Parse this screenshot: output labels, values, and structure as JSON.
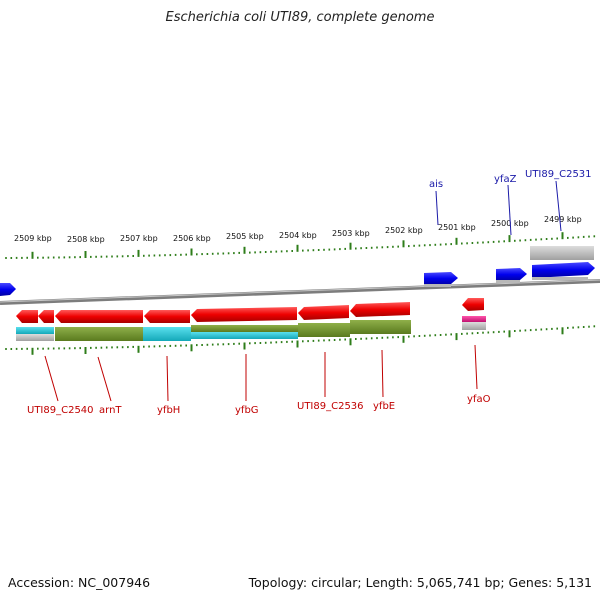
{
  "title": "Escherichia coli UTI89, complete genome",
  "footer": {
    "accession": "Accession: NC_007946",
    "summary": "Topology: circular; Length: 5,065,741 bp; Genes: 5,131"
  },
  "colors": {
    "backbone": "#8a8a8a",
    "forward_gene": "#0000ee",
    "reverse_gene": "#ee0000",
    "olive_feature": "#6b8e23",
    "cyan_feature": "#20c0d0",
    "grey_feature": "#bbbbbb",
    "magenta_feature": "#e0208a",
    "tick": "#2e7d1a",
    "forward_label": "#1a1aa8",
    "reverse_label": "#c00000"
  },
  "scale": {
    "tick_labels": [
      "2509 kbp",
      "2508 kbp",
      "2507 kbp",
      "2506 kbp",
      "2505 kbp",
      "2504 kbp",
      "2503 kbp",
      "2502 kbp",
      "2501 kbp",
      "2500 kbp",
      "2499 kbp"
    ]
  },
  "genes": {
    "forward_labeled": [
      "ais",
      "yfaZ",
      "UTI89_C2531"
    ],
    "reverse_labeled": [
      "UTI89_C2540",
      "arnT",
      "yfbH",
      "yfbG",
      "UTI89_C2536",
      "yfbE",
      "yfaO"
    ]
  }
}
